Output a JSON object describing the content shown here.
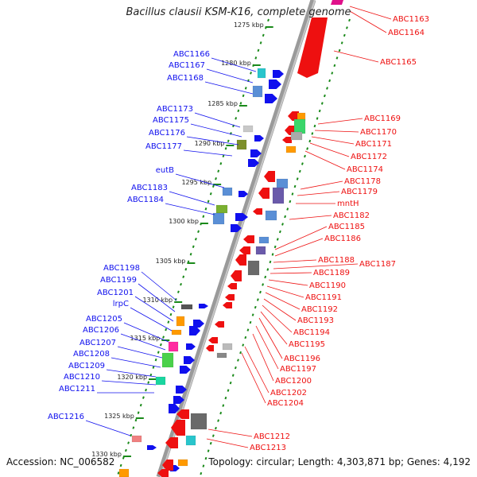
{
  "title": "Bacillus clausii KSM-K16, complete genome",
  "footer": {
    "accession": "Accession: NC_006582",
    "topology": "Topology: circular; Length: 4,303,871 bp; Genes: 4,192"
  },
  "colors": {
    "forward": "#1010ee",
    "reverse": "#ee1010",
    "backbone": "#888888",
    "ruler": "#1a8a1a"
  },
  "ruler_ticks": [
    "1275 kbp",
    "1280 kbp",
    "1285 kbp",
    "1290 kbp",
    "1295 kbp",
    "1300 kbp",
    "1305 kbp",
    "1310 kbp",
    "1315 kbp",
    "1320 kbp",
    "1325 kbp",
    "1330 kbp"
  ],
  "left_genes": [
    "ABC1166",
    "ABC1167",
    "ABC1168",
    "ABC1173",
    "ABC1175",
    "ABC1176",
    "ABC1177",
    "eutB",
    "ABC1183",
    "ABC1184",
    "ABC1198",
    "ABC1199",
    "ABC1201",
    "lrpC",
    "ABC1205",
    "ABC1206",
    "ABC1207",
    "ABC1208",
    "ABC1209",
    "ABC1210",
    "ABC1211",
    "ABC1216"
  ],
  "right_genes": [
    "ABC1163",
    "ABC1164",
    "ABC1165",
    "ABC1169",
    "ABC1170",
    "ABC1171",
    "ABC1172",
    "ABC1174",
    "ABC1178",
    "ABC1179",
    "mntH",
    "ABC1182",
    "ABC1185",
    "ABC1186",
    "ABC1188",
    "ABC1187",
    "ABC1189",
    "ABC1190",
    "ABC1191",
    "ABC1192",
    "ABC1193",
    "ABC1194",
    "ABC1195",
    "ABC1196",
    "ABC1197",
    "ABC1200",
    "ABC1202",
    "ABC1204",
    "ABC1212",
    "ABC1213"
  ]
}
